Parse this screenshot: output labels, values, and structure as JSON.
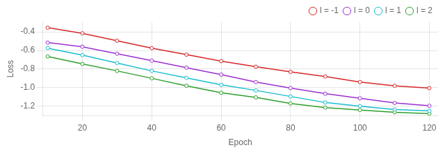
{
  "chart_data": {
    "type": "line",
    "x": [
      10,
      20,
      30,
      40,
      50,
      60,
      70,
      80,
      90,
      100,
      110,
      120
    ],
    "series": [
      {
        "name": "l = -1",
        "color": "#d62728",
        "marker": "o",
        "line_style": "solid",
        "values": [
          -0.355,
          -0.415,
          -0.495,
          -0.575,
          -0.645,
          -0.715,
          -0.775,
          -0.83,
          -0.88,
          -0.94,
          -0.98,
          -1.005
        ]
      },
      {
        "name": "l = 0",
        "color": "#9b30d0",
        "marker": "o",
        "line_style": "solid",
        "values": [
          -0.515,
          -0.56,
          -0.635,
          -0.71,
          -0.785,
          -0.86,
          -0.94,
          -1.005,
          -1.065,
          -1.115,
          -1.165,
          -1.195
        ]
      },
      {
        "name": "l = 1",
        "color": "#17becf",
        "marker": "o",
        "line_style": "solid",
        "values": [
          -0.575,
          -0.65,
          -0.735,
          -0.82,
          -0.895,
          -0.97,
          -1.03,
          -1.095,
          -1.16,
          -1.2,
          -1.235,
          -1.25
        ]
      },
      {
        "name": "l = 2",
        "color": "#2ca02c",
        "marker": "o",
        "line_style": "solid",
        "values": [
          -0.665,
          -0.745,
          -0.82,
          -0.9,
          -0.98,
          -1.055,
          -1.105,
          -1.17,
          -1.215,
          -1.24,
          -1.265,
          -1.28
        ]
      }
    ],
    "xlabel": "Epoch",
    "ylabel": "Loss",
    "xlim": [
      8.5,
      122.5
    ],
    "ylim": [
      -1.3,
      -0.295
    ],
    "xticks": [
      20,
      40,
      60,
      80,
      100,
      120
    ],
    "yticks": [
      -0.4,
      -0.6,
      -0.8,
      {
        "value": -1.0,
        "label": "-1.0"
      },
      -1.2
    ],
    "grid": true,
    "legend": "upper right"
  }
}
